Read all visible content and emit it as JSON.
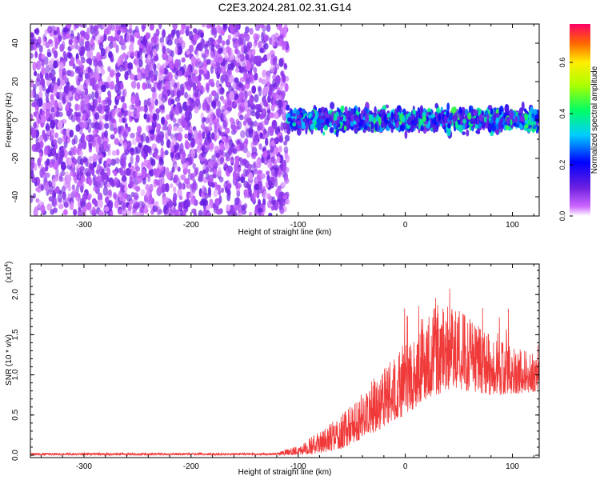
{
  "title": "C2E3.2024.281.02.31.G14",
  "colors": {
    "snr_line": "#f03a3a",
    "spectrogram_base": "#6a1fe0"
  },
  "chart_data": [
    {
      "type": "heatmap",
      "title": "",
      "xlabel": "Height of straight line (km)",
      "ylabel": "Frequency (Hz)",
      "xlim": [
        -350,
        125
      ],
      "ylim": [
        -50,
        50
      ],
      "x_ticks": [
        -300,
        -200,
        -100,
        0,
        100
      ],
      "x_tick_labels": [
        "-300",
        "-200",
        "-100",
        "0",
        "100"
      ],
      "y_ticks": [
        -40,
        -20,
        0,
        20,
        40
      ],
      "y_tick_labels": [
        "-40",
        "-20",
        "0",
        "20",
        "40"
      ],
      "colorbar": {
        "label": "Normalized spectral amplitude",
        "range": [
          0,
          0.75
        ],
        "ticks": [
          0.0,
          0.2,
          0.4,
          0.6
        ],
        "tick_labels": [
          "0.0",
          "0.2",
          "0.4",
          "0.6"
        ]
      },
      "regions": [
        {
          "x_from": -350,
          "x_to": -110,
          "freq_from": -50,
          "freq_to": 50,
          "amplitude_range": [
            0.02,
            0.12
          ]
        },
        {
          "x_from": -110,
          "x_to": 125,
          "freq_from": -8,
          "freq_to": 8,
          "amplitude_range": [
            0.1,
            0.45
          ]
        }
      ],
      "grid": false
    },
    {
      "type": "line",
      "title": "",
      "xlabel": "Height of straight line (km)",
      "ylabel": "SNR (10 * v/v)",
      "y_multiplier": "(x10",
      "y_multiplier_exp": "4",
      "y_multiplier_close": ")",
      "xlim": [
        -350,
        125
      ],
      "ylim": [
        -0.03,
        2.38
      ],
      "x_ticks": [
        -300,
        -200,
        -100,
        0,
        100
      ],
      "x_tick_labels": [
        "-300",
        "-200",
        "-100",
        "0",
        "100"
      ],
      "y_ticks": [
        0.0,
        0.5,
        1.0,
        1.5,
        2.0
      ],
      "y_tick_labels": [
        "0.0",
        "0.5",
        "1.0",
        "1.5",
        "2.0"
      ],
      "envelope": [
        {
          "x": -350,
          "low": 0.0,
          "high": 0.03
        },
        {
          "x": -120,
          "low": 0.0,
          "high": 0.03
        },
        {
          "x": -100,
          "low": 0.0,
          "high": 0.12
        },
        {
          "x": -80,
          "low": 0.02,
          "high": 0.3
        },
        {
          "x": -60,
          "low": 0.08,
          "high": 0.5
        },
        {
          "x": -40,
          "low": 0.2,
          "high": 0.8
        },
        {
          "x": -20,
          "low": 0.35,
          "high": 1.1
        },
        {
          "x": 0,
          "low": 0.5,
          "high": 1.4
        },
        {
          "x": 20,
          "low": 0.7,
          "high": 1.8
        },
        {
          "x": 40,
          "low": 0.8,
          "high": 1.9
        },
        {
          "x": 60,
          "low": 0.8,
          "high": 1.7
        },
        {
          "x": 80,
          "low": 0.75,
          "high": 1.5
        },
        {
          "x": 100,
          "low": 0.75,
          "high": 1.35
        },
        {
          "x": 125,
          "low": 0.8,
          "high": 1.25
        }
      ],
      "grid": false
    }
  ]
}
